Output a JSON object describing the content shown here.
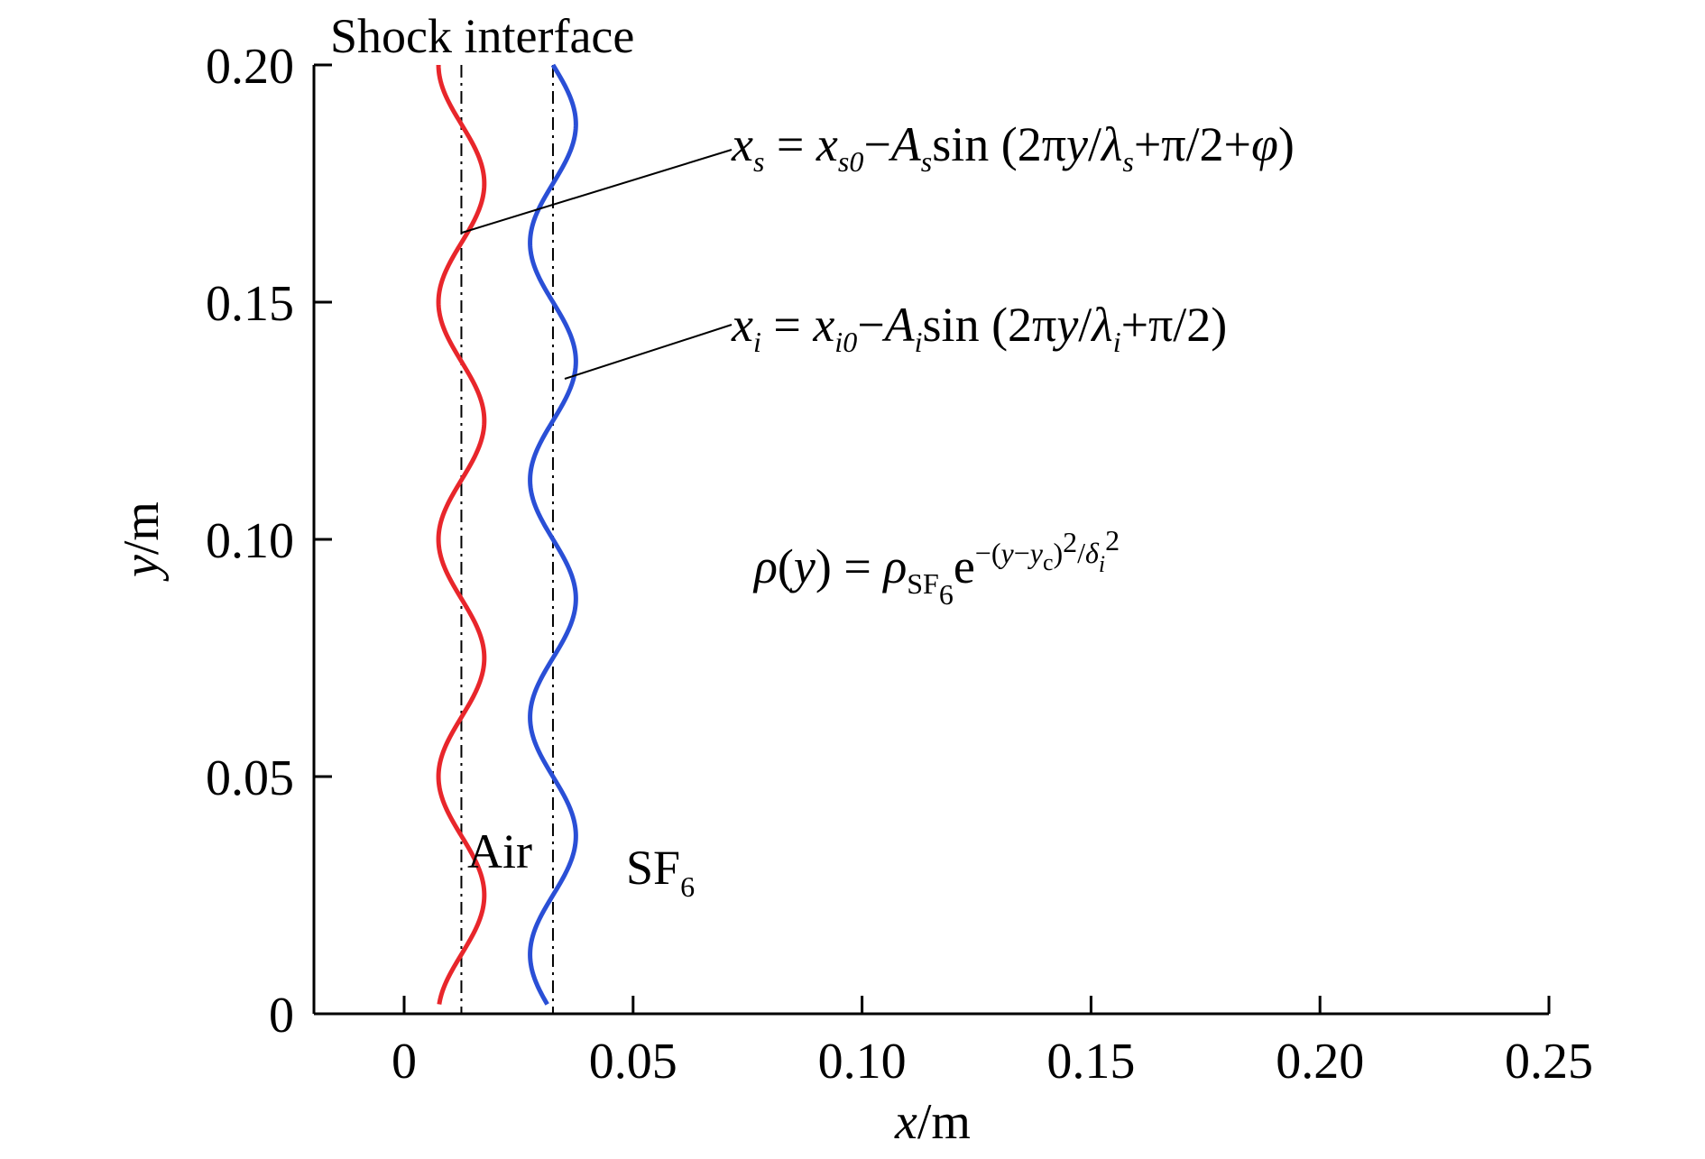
{
  "chart_data": {
    "type": "line",
    "title": "",
    "xlabel": {
      "var": "x",
      "unit": "/m"
    },
    "ylabel": {
      "var": "y",
      "unit": "/m"
    },
    "xlim": [
      -0.02,
      0.25
    ],
    "ylim": [
      0,
      0.2
    ],
    "x_ticks": [
      0,
      0.05,
      0.1,
      0.15,
      0.2,
      0.25
    ],
    "x_tick_labels": [
      "0",
      "0.05",
      "0.10",
      "0.15",
      "0.20",
      "0.25"
    ],
    "y_ticks": [
      0,
      0.05,
      0.1,
      0.15,
      0.2
    ],
    "y_tick_labels": [
      "0",
      "0.05",
      "0.10",
      "0.15",
      "0.20"
    ],
    "grid": false,
    "series": [
      {
        "kind": "sinusoid",
        "color": "#e8262b",
        "x0": 0.0125,
        "amplitude": 0.005,
        "wavelength": 0.05,
        "phase_offset": 1.5708,
        "y_range": [
          0.002,
          0.2
        ]
      },
      {
        "kind": "sinusoid",
        "color": "#2a4fd6",
        "x0": 0.0325,
        "amplitude": 0.005,
        "wavelength": 0.05,
        "phase_offset": 0,
        "y_range": [
          0.002,
          0.2
        ]
      },
      {
        "kind": "reference-line",
        "style": "dash-dot",
        "color": "#000000",
        "x": 0.0125
      },
      {
        "kind": "reference-line",
        "style": "dash-dot",
        "color": "#000000",
        "x": 0.0325
      }
    ],
    "annotations": {
      "shock_label": "Shock interface",
      "air_label": "Air",
      "sf6_label": {
        "main": "SF",
        "sub": "6"
      },
      "eq_shock": {
        "lhs": "x",
        "lhs_sub": "s",
        "eq": " = ",
        "x0": "x",
        "x0_sub": "s0",
        "minus": "−",
        "amp": "A",
        "amp_sub": "s",
        "sin": "sin (2π",
        "yvar": "y",
        "slash": "/",
        "lambda": "λ",
        "lambda_sub": "s",
        "tail": "+π/2+",
        "phi": "φ",
        "close": ")"
      },
      "eq_interface": {
        "lhs": "x",
        "lhs_sub": "i",
        "eq": " = ",
        "x0": "x",
        "x0_sub": "i0",
        "minus": "−",
        "amp": "A",
        "amp_sub": "i",
        "sin": "sin (2π",
        "yvar": "y",
        "slash": "/",
        "lambda": "λ",
        "lambda_sub": "i",
        "tail": "+π/2)"
      },
      "eq_density": {
        "rho": "ρ",
        "open": "(",
        "yvar": "y",
        "close": ") = ",
        "rho2": "ρ",
        "rho_sub": "SF",
        "rho_subsub": "6",
        "e": "e",
        "exp_a": "−(",
        "exp_y": "y",
        "exp_b": "−",
        "exp_yc": "y",
        "exp_c_sub": "c",
        "exp_d": ")",
        "exp_sq": "2",
        "exp_slash": "/",
        "exp_delta": "δ",
        "exp_delta_sub": "i",
        "exp_sq2": "2"
      }
    }
  }
}
